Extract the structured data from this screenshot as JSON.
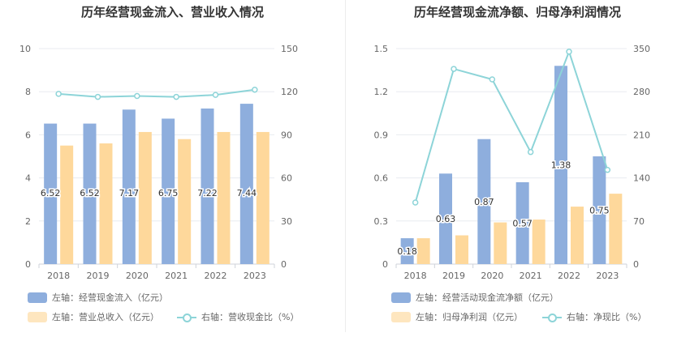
{
  "chart_data": [
    {
      "type": "bar",
      "title": "历年经营现金流入、营业收入情况",
      "categories": [
        "2018",
        "2019",
        "2020",
        "2021",
        "2022",
        "2023"
      ],
      "y_left": {
        "ylim": [
          0,
          10
        ],
        "ticks": [
          "0",
          "2",
          "4",
          "6",
          "8",
          "10"
        ]
      },
      "y_right": {
        "ylim": [
          0,
          150
        ],
        "ticks": [
          "0",
          "30",
          "60",
          "90",
          "120",
          "150"
        ]
      },
      "grid": true,
      "legend_position": "bottom-left",
      "series": [
        {
          "name": "左轴：经营现金流入（亿元）",
          "axis": "left",
          "kind": "bar",
          "color": "#8eaedd",
          "values": [
            6.52,
            6.52,
            7.17,
            6.75,
            7.22,
            7.44
          ],
          "labels": [
            "6.52",
            "6.52",
            "7.17",
            "6.75",
            "7.22",
            "7.44"
          ]
        },
        {
          "name": "左轴：营业总收入（亿元）",
          "axis": "left",
          "kind": "bar",
          "color": "#fed89b",
          "values": [
            5.5,
            5.6,
            6.13,
            5.8,
            6.13,
            6.13
          ]
        },
        {
          "name": "右轴：营收现金比（%）",
          "axis": "right",
          "kind": "line",
          "color": "#8dd4d8",
          "values": [
            118.5,
            116.4,
            117,
            116.4,
            117.8,
            121.4
          ]
        }
      ]
    },
    {
      "type": "bar",
      "title": "历年经营现金流净额、归母净利润情况",
      "categories": [
        "2018",
        "2019",
        "2020",
        "2021",
        "2022",
        "2023"
      ],
      "y_left": {
        "ylim": [
          0,
          1.5
        ],
        "ticks": [
          "0",
          "0.3",
          "0.6",
          "0.9",
          "1.2",
          "1.5"
        ]
      },
      "y_right": {
        "ylim": [
          0,
          350
        ],
        "ticks": [
          "0",
          "70",
          "140",
          "210",
          "280",
          "350"
        ]
      },
      "grid": true,
      "legend_position": "bottom-left",
      "series": [
        {
          "name": "左轴：经营活动现金流净额（亿元）",
          "axis": "left",
          "kind": "bar",
          "color": "#8eaedd",
          "values": [
            0.18,
            0.63,
            0.87,
            0.57,
            1.38,
            0.75
          ],
          "labels": [
            "0.18",
            "0.63",
            "0.87",
            "0.57",
            "1.38",
            "0.75"
          ]
        },
        {
          "name": "左轴：归母净利润（亿元）",
          "axis": "left",
          "kind": "bar",
          "color": "#fed89b",
          "values": [
            0.18,
            0.2,
            0.29,
            0.31,
            0.4,
            0.49
          ]
        },
        {
          "name": "右轴：净现比（%）",
          "axis": "right",
          "kind": "line",
          "color": "#8dd4d8",
          "values": [
            100,
            317,
            300,
            182,
            345,
            153
          ]
        }
      ]
    }
  ]
}
